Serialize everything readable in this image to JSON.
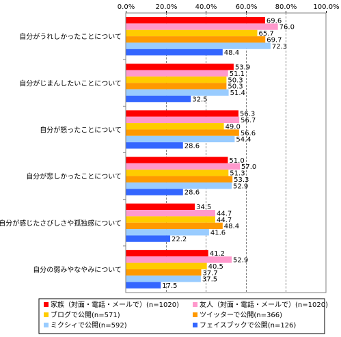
{
  "chart_data": {
    "type": "bar",
    "orientation": "horizontal",
    "title": "",
    "xlabel": "",
    "ylabel": "",
    "xlim": [
      0,
      100
    ],
    "x_ticks": [
      "0.0%",
      "20.0%",
      "40.0%",
      "60.0%",
      "80.0%",
      "100.0%"
    ],
    "x_tick_values": [
      0,
      20,
      40,
      60,
      80,
      100
    ],
    "grid": "vertical dashed",
    "legend_position": "bottom",
    "categories": [
      "自分がうれしかったことについて",
      "自分がじまんしたいことについて",
      "自分が怒ったことについて",
      "自分が悲しかったことについて",
      "自分が感じたさびしさや孤独感について",
      "自分の弱みやなやみについて"
    ],
    "series": [
      {
        "name": "家族（対面・電話・メールで）(n=1020)",
        "color": "#ff0000",
        "values": [
          69.6,
          53.9,
          56.3,
          51.0,
          34.5,
          41.2
        ]
      },
      {
        "name": "友人（対面・電話・メールで）(n=1020)",
        "color": "#ff99cc",
        "values": [
          76.0,
          51.1,
          56.7,
          57.0,
          44.7,
          52.9
        ]
      },
      {
        "name": "ブログで公開(n=571)",
        "color": "#ffcc00",
        "values": [
          65.7,
          50.3,
          49.0,
          51.3,
          44.7,
          40.5
        ]
      },
      {
        "name": "ツイッターで公開(n=366)",
        "color": "#ff9900",
        "values": [
          69.7,
          50.3,
          56.6,
          53.3,
          48.4,
          37.7
        ]
      },
      {
        "name": "ミクシィで公開(n=592)",
        "color": "#99ccff",
        "values": [
          72.3,
          51.4,
          54.4,
          52.9,
          41.6,
          37.5
        ]
      },
      {
        "name": "フェイスブックで公開(n=126)",
        "color": "#3366ff",
        "values": [
          48.4,
          32.5,
          28.6,
          28.6,
          22.2,
          17.5
        ]
      }
    ]
  }
}
